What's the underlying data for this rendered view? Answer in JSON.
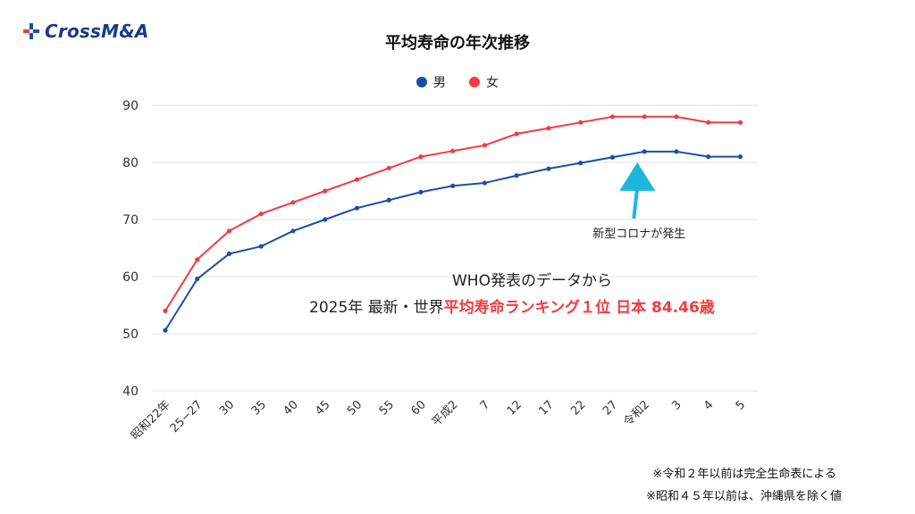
{
  "brand": {
    "name": "CrossM&A"
  },
  "notes": [
    "※令和２年以前は完全生命表による",
    "※昭和４５年以前は、沖縄県を除く値"
  ],
  "headline": {
    "line1": "WHO発表のデータから",
    "line2_prefix": "2025年 最新・世界",
    "line2_highlight": "平均寿命ランキング１位 日本 84.46歳"
  },
  "colors": {
    "male": "#1a4fa8",
    "female": "#f23b41",
    "arrow": "#1cb8dc",
    "highlight": "#f23b41"
  },
  "chart_data": {
    "type": "line",
    "title": "平均寿命の年次推移",
    "categories": [
      "昭和22年",
      "25−27",
      "30",
      "35",
      "40",
      "45",
      "50",
      "55",
      "60",
      "平成2",
      "7",
      "12",
      "17",
      "22",
      "27",
      "令和2",
      "3",
      "4",
      "5"
    ],
    "series": [
      {
        "name": "男",
        "values": [
          50.6,
          59.6,
          64.0,
          65.3,
          68.0,
          70.0,
          72.0,
          73.4,
          74.8,
          75.9,
          76.4,
          77.7,
          78.9,
          79.9,
          80.9,
          81.9,
          81.9,
          81.0,
          81.0
        ]
      },
      {
        "name": "女",
        "values": [
          54.0,
          63.0,
          68.0,
          71.0,
          73.0,
          75.0,
          77.0,
          79.0,
          81.0,
          82.0,
          83.0,
          85.0,
          86.0,
          87.0,
          88.0,
          88.0,
          88.0,
          87.0,
          87.0
        ]
      }
    ],
    "ylim": [
      40,
      90
    ],
    "yticks": [
      40,
      50,
      60,
      70,
      80,
      90
    ],
    "xlabel": "",
    "ylabel": "",
    "grid": true,
    "legend": "top-center",
    "annotation": {
      "text": "新型コロナが発生",
      "category": "令和2"
    }
  }
}
